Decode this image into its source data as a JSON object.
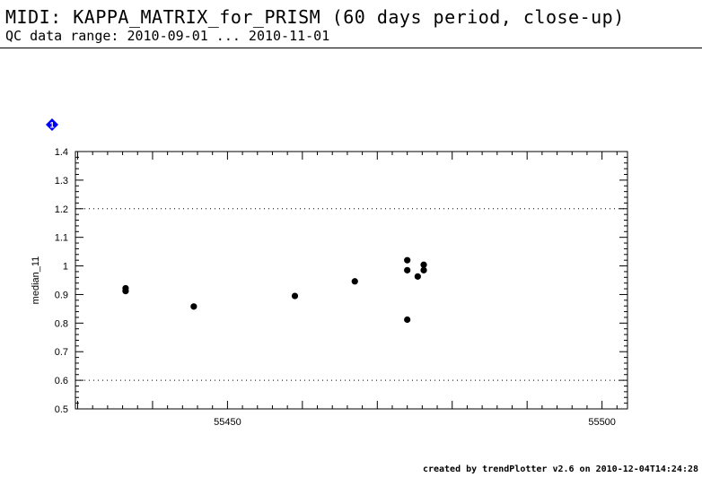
{
  "header": {
    "title": "MIDI: KAPPA_MATRIX_for_PRISM (60 days period, close-up)",
    "subtitle": "QC data range: 2010-09-01 ... 2010-11-01"
  },
  "marker": {
    "label": "1",
    "color": "#0000ff",
    "icon": "blue-diamond-marker-icon"
  },
  "footer": {
    "credit": "created by trendPlotter v2.6 on 2010-12-04T14:24:28"
  },
  "chart_data": {
    "type": "scatter",
    "title": "",
    "xlabel": "",
    "ylabel": "median_11",
    "xlim": [
      55429.7,
      55503.4
    ],
    "ylim": [
      0.5,
      1.4
    ],
    "xticks": [
      55450,
      55500
    ],
    "xtick_labels": [
      "55450",
      "55500"
    ],
    "yticks": [
      0.5,
      0.6,
      0.7,
      0.8,
      0.9,
      1.0,
      1.1,
      1.2,
      1.3,
      1.4
    ],
    "ytick_labels": [
      "0.5",
      "0.6",
      "0.7",
      "0.8",
      "0.9",
      "1",
      "1.1",
      "1.2",
      "1.3",
      "1.4"
    ],
    "reference_lines": [
      0.6,
      1.2
    ],
    "grid": false,
    "point_color": "#000000",
    "points": [
      {
        "x": 55436.4,
        "y": 0.922
      },
      {
        "x": 55436.4,
        "y": 0.912
      },
      {
        "x": 55445.5,
        "y": 0.858
      },
      {
        "x": 55459.0,
        "y": 0.895
      },
      {
        "x": 55467.0,
        "y": 0.946
      },
      {
        "x": 55474.0,
        "y": 1.02
      },
      {
        "x": 55474.0,
        "y": 0.985
      },
      {
        "x": 55474.0,
        "y": 0.812
      },
      {
        "x": 55475.4,
        "y": 0.963
      },
      {
        "x": 55476.2,
        "y": 1.004
      },
      {
        "x": 55476.2,
        "y": 0.985
      }
    ]
  }
}
